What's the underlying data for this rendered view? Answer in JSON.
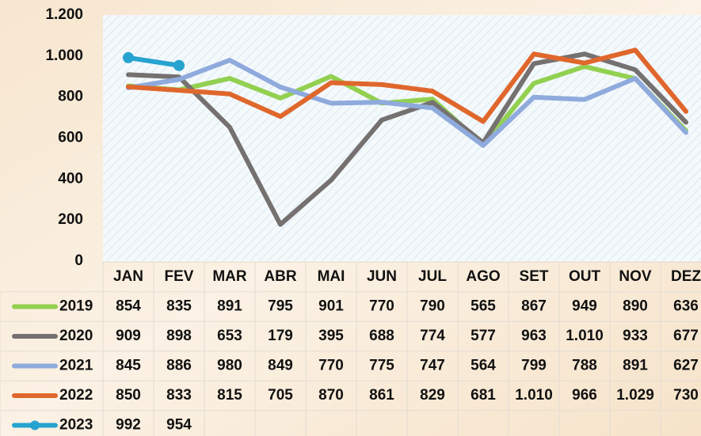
{
  "chart_data": {
    "type": "line",
    "categories": [
      "JAN",
      "FEV",
      "MAR",
      "ABR",
      "MAI",
      "JUN",
      "JUL",
      "AGO",
      "SET",
      "OUT",
      "NOV",
      "DEZ"
    ],
    "series": [
      {
        "name": "2019",
        "color": "#92d050",
        "values": [
          854,
          835,
          891,
          795,
          901,
          770,
          790,
          565,
          867,
          949,
          890,
          636
        ],
        "value_labels": [
          "854",
          "835",
          "891",
          "795",
          "901",
          "770",
          "790",
          "565",
          "867",
          "949",
          "890",
          "636"
        ]
      },
      {
        "name": "2020",
        "color": "#767171",
        "values": [
          909,
          898,
          653,
          179,
          395,
          688,
          774,
          577,
          963,
          1010,
          933,
          677
        ],
        "value_labels": [
          "909",
          "898",
          "653",
          "179",
          "395",
          "688",
          "774",
          "577",
          "963",
          "1.010",
          "933",
          "677"
        ]
      },
      {
        "name": "2021",
        "color": "#8faadc",
        "values": [
          845,
          886,
          980,
          849,
          770,
          775,
          747,
          564,
          799,
          788,
          891,
          627
        ],
        "value_labels": [
          "845",
          "886",
          "980",
          "849",
          "770",
          "775",
          "747",
          "564",
          "799",
          "788",
          "891",
          "627"
        ]
      },
      {
        "name": "2022",
        "color": "#e0672c",
        "values": [
          850,
          833,
          815,
          705,
          870,
          861,
          829,
          681,
          1010,
          966,
          1029,
          730
        ],
        "value_labels": [
          "850",
          "833",
          "815",
          "705",
          "870",
          "861",
          "829",
          "681",
          "1.010",
          "966",
          "1.029",
          "730"
        ]
      },
      {
        "name": "2023",
        "color": "#27a3cf",
        "values": [
          992,
          954,
          null,
          null,
          null,
          null,
          null,
          null,
          null,
          null,
          null,
          null
        ],
        "value_labels": [
          "992",
          "954",
          null,
          null,
          null,
          null,
          null,
          null,
          null,
          null,
          null,
          null
        ]
      }
    ],
    "ylim": [
      0,
      1200
    ],
    "yticks": [
      0,
      200,
      400,
      600,
      800,
      {
        "value": 1000,
        "label": "1.000"
      },
      {
        "value": 1200,
        "label": "1.200"
      }
    ],
    "grid": false
  }
}
